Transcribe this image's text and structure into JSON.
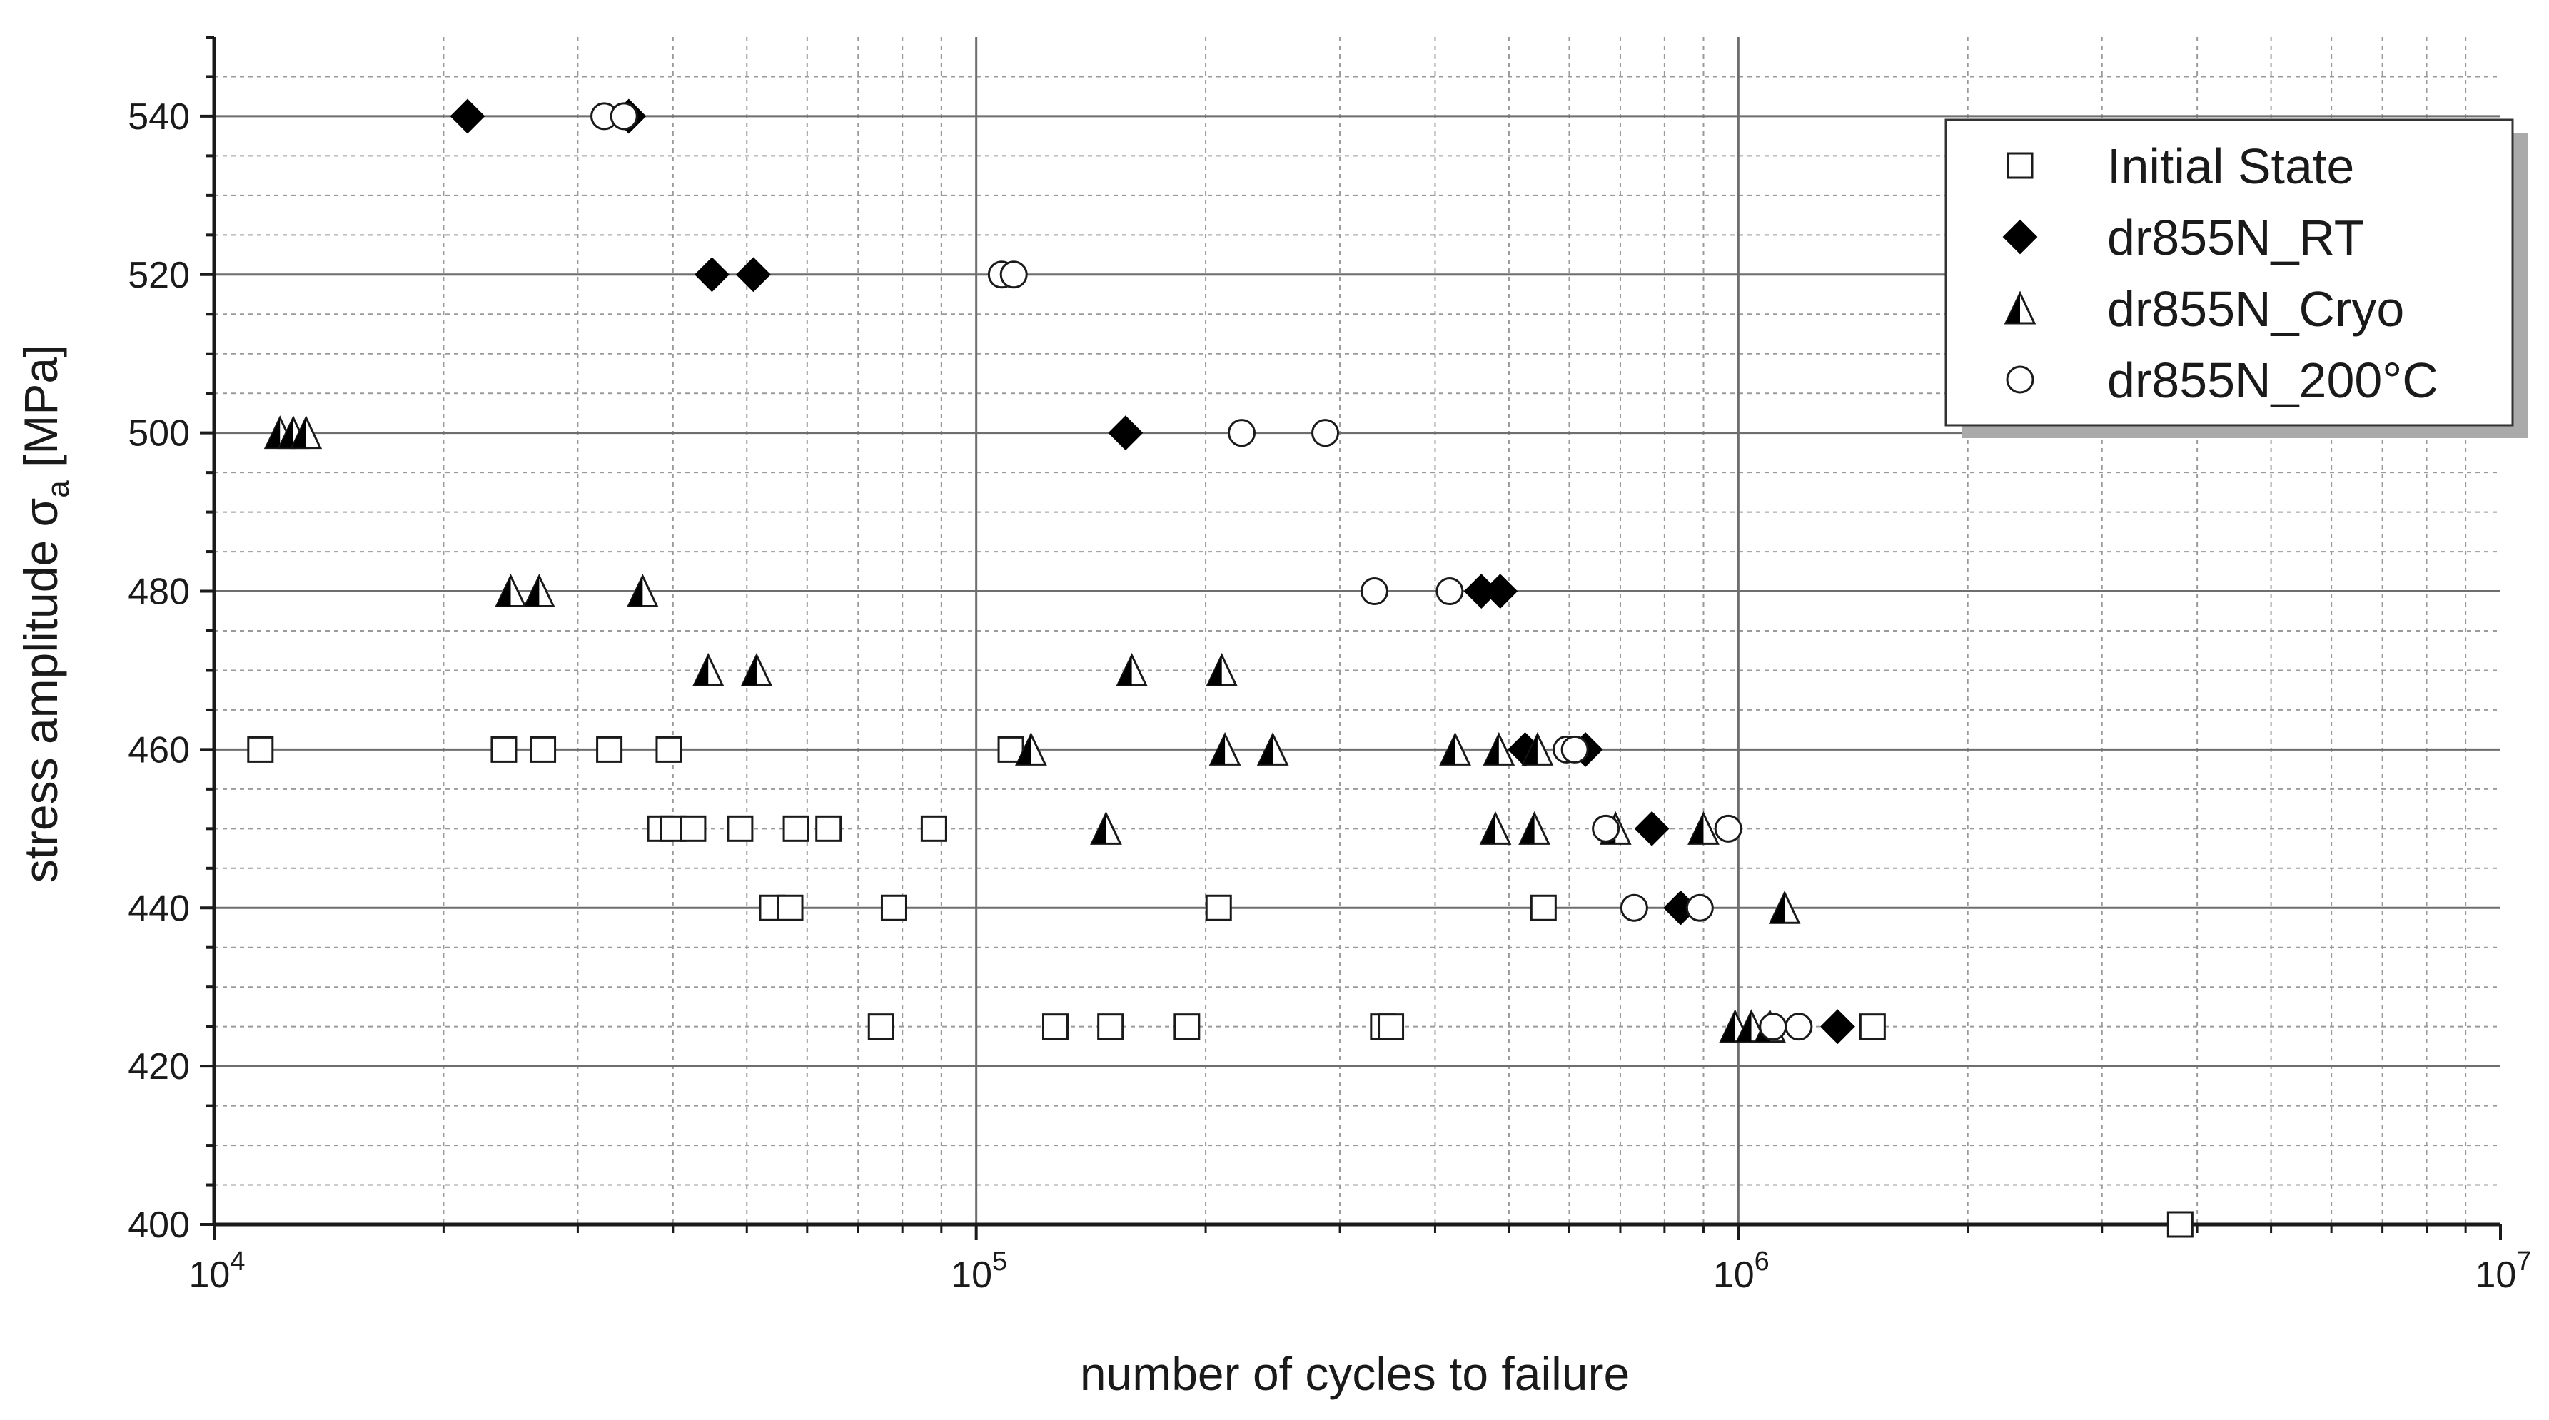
{
  "chart_data": {
    "type": "scatter",
    "xlabel": "number of cycles to failure",
    "ylabel": "stress amplitude σa [MPa]",
    "ylabel_main": "stress amplitude σ",
    "ylabel_sub": "a",
    "ylabel_unit": " [MPa]",
    "x_scale": "log",
    "xlim": [
      10000,
      10000000
    ],
    "ylim": [
      400,
      550
    ],
    "x_ticks": [
      {
        "value": 10000,
        "base": "10",
        "exp": "4"
      },
      {
        "value": 100000,
        "base": "10",
        "exp": "5"
      },
      {
        "value": 1000000,
        "base": "10",
        "exp": "6"
      },
      {
        "value": 10000000,
        "base": "10",
        "exp": "7"
      }
    ],
    "y_ticks": [
      400,
      420,
      440,
      460,
      480,
      500,
      520,
      540
    ],
    "grid": true,
    "legend_position": "top-right",
    "series": [
      {
        "name": "Initial State",
        "marker": "open-square",
        "points": [
          [
            11500,
            460
          ],
          [
            24000,
            460
          ],
          [
            27000,
            460
          ],
          [
            33000,
            460
          ],
          [
            39500,
            460
          ],
          [
            111000,
            460
          ],
          [
            38500,
            450
          ],
          [
            40000,
            450
          ],
          [
            42500,
            450
          ],
          [
            49000,
            450
          ],
          [
            58000,
            450
          ],
          [
            64000,
            450
          ],
          [
            88000,
            450
          ],
          [
            54000,
            440
          ],
          [
            57000,
            440
          ],
          [
            78000,
            440
          ],
          [
            208000,
            440
          ],
          [
            555000,
            440
          ],
          [
            75000,
            425
          ],
          [
            127000,
            425
          ],
          [
            150000,
            425
          ],
          [
            189000,
            425
          ],
          [
            342000,
            425
          ],
          [
            350000,
            425
          ],
          [
            1500000,
            425
          ],
          [
            3800000,
            400
          ]
        ]
      },
      {
        "name": "dr855N_RT",
        "marker": "filled-diamond",
        "points": [
          [
            21500,
            540
          ],
          [
            35000,
            540
          ],
          [
            45000,
            520
          ],
          [
            51000,
            520
          ],
          [
            157000,
            500
          ],
          [
            460000,
            480
          ],
          [
            487000,
            480
          ],
          [
            525000,
            460
          ],
          [
            630000,
            460
          ],
          [
            770000,
            450
          ],
          [
            840000,
            440
          ],
          [
            1350000,
            425
          ]
        ]
      },
      {
        "name": "dr855N_Cryo",
        "marker": "half-filled-triangle",
        "points": [
          [
            12200,
            500
          ],
          [
            12700,
            500
          ],
          [
            13200,
            500
          ],
          [
            24500,
            480
          ],
          [
            26700,
            480
          ],
          [
            36500,
            480
          ],
          [
            44500,
            470
          ],
          [
            51500,
            470
          ],
          [
            160000,
            470
          ],
          [
            210000,
            470
          ],
          [
            118000,
            460
          ],
          [
            212000,
            460
          ],
          [
            245000,
            460
          ],
          [
            425000,
            460
          ],
          [
            485000,
            460
          ],
          [
            545000,
            460
          ],
          [
            148000,
            450
          ],
          [
            480000,
            450
          ],
          [
            540000,
            450
          ],
          [
            690000,
            450
          ],
          [
            900000,
            450
          ],
          [
            1150000,
            440
          ],
          [
            990000,
            425
          ],
          [
            1040000,
            425
          ],
          [
            1100000,
            425
          ]
        ]
      },
      {
        "name": "dr855N_200°C",
        "marker": "open-circle",
        "points": [
          [
            32500,
            540
          ],
          [
            34500,
            540
          ],
          [
            108000,
            520
          ],
          [
            112000,
            520
          ],
          [
            223000,
            500
          ],
          [
            287000,
            500
          ],
          [
            333000,
            480
          ],
          [
            418000,
            480
          ],
          [
            595000,
            460
          ],
          [
            610000,
            460
          ],
          [
            670000,
            450
          ],
          [
            970000,
            450
          ],
          [
            730000,
            440
          ],
          [
            890000,
            440
          ],
          [
            1110000,
            425
          ],
          [
            1200000,
            425
          ]
        ]
      }
    ]
  }
}
